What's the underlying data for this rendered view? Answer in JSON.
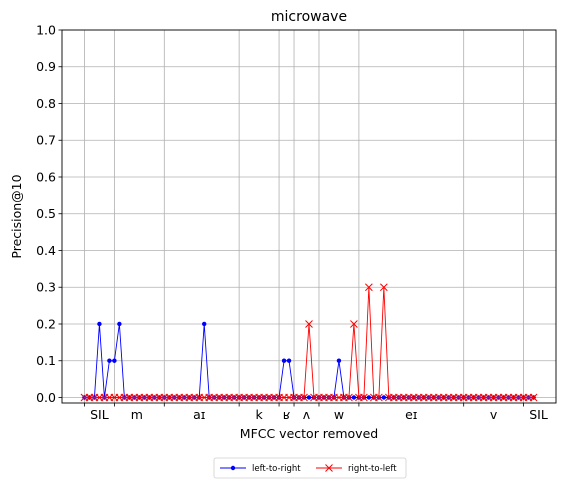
{
  "chart_data": {
    "type": "line",
    "title": "microwave",
    "xlabel": "MFCC vector removed",
    "ylabel": "Precision@10",
    "ylim": [
      -0.015,
      1.0
    ],
    "yticks": [
      "0.0",
      "0.1",
      "0.2",
      "0.3",
      "0.4",
      "0.5",
      "0.6",
      "0.7",
      "0.8",
      "0.9",
      "1.0"
    ],
    "xlim": [
      -4.5,
      94.5
    ],
    "grid": true,
    "x": [
      0,
      1,
      2,
      3,
      4,
      5,
      6,
      7,
      8,
      9,
      10,
      11,
      12,
      13,
      14,
      15,
      16,
      17,
      18,
      19,
      20,
      21,
      22,
      23,
      24,
      25,
      26,
      27,
      28,
      29,
      30,
      31,
      32,
      33,
      34,
      35,
      36,
      37,
      38,
      39,
      40,
      41,
      42,
      43,
      44,
      45,
      46,
      47,
      48,
      49,
      50,
      51,
      52,
      53,
      54,
      55,
      56,
      57,
      58,
      59,
      60,
      61,
      62,
      63,
      64,
      65,
      66,
      67,
      68,
      69,
      70,
      71,
      72,
      73,
      74,
      75,
      76,
      77,
      78,
      79,
      80,
      81,
      82,
      83,
      84,
      85,
      86,
      87,
      88,
      89,
      90
    ],
    "phone_boundaries": [
      0,
      6,
      16,
      31,
      39,
      42,
      47,
      55,
      76,
      88
    ],
    "phone_labels": [
      {
        "label": "SIL",
        "x": 3
      },
      {
        "label": "m",
        "x": 10.5
      },
      {
        "label": "aɪ",
        "x": 23
      },
      {
        "label": "k",
        "x": 35
      },
      {
        "label": "ʁ",
        "x": 40.5
      },
      {
        "label": "ʌ",
        "x": 44.5
      },
      {
        "label": "w",
        "x": 51
      },
      {
        "label": "eɪ",
        "x": 65.5
      },
      {
        "label": "v",
        "x": 82
      },
      {
        "label": "SIL",
        "x": 91
      }
    ],
    "series": [
      {
        "name": "left-to-right",
        "color": "#0000ff",
        "marker": "dot",
        "values": [
          0,
          0,
          0,
          0.2,
          0,
          0.1,
          0.1,
          0.2,
          0,
          0,
          0,
          0,
          0,
          0,
          0,
          0,
          0,
          0,
          0,
          0,
          0,
          0,
          0,
          0,
          0.2,
          0,
          0,
          0,
          0,
          0,
          0,
          0,
          0,
          0,
          0,
          0,
          0,
          0,
          0,
          0,
          0.1,
          0.1,
          0,
          0,
          0,
          0,
          0,
          0,
          0,
          0,
          0,
          0.1,
          0,
          0,
          0,
          0,
          0,
          0,
          0,
          0,
          0,
          0,
          0,
          0,
          0,
          0,
          0,
          0,
          0,
          0,
          0,
          0,
          0,
          0,
          0,
          0,
          0,
          0,
          0,
          0,
          0,
          0,
          0,
          0,
          0,
          0,
          0,
          0,
          0,
          0,
          0
        ]
      },
      {
        "name": "right-to-left",
        "color": "#ff0000",
        "marker": "x",
        "values": [
          0,
          0,
          0,
          0,
          0,
          0,
          0,
          0,
          0,
          0,
          0,
          0,
          0,
          0,
          0,
          0,
          0,
          0,
          0,
          0,
          0,
          0,
          0,
          0,
          0,
          0,
          0,
          0,
          0,
          0,
          0,
          0,
          0,
          0,
          0,
          0,
          0,
          0,
          0,
          0,
          0,
          0,
          0,
          0,
          0,
          0.2,
          0,
          0,
          0,
          0,
          0,
          0,
          0,
          0,
          0.2,
          0,
          0,
          0.3,
          0,
          0,
          0.3,
          0,
          0,
          0,
          0,
          0,
          0,
          0,
          0,
          0,
          0,
          0,
          0,
          0,
          0,
          0,
          0,
          0,
          0,
          0,
          0,
          0,
          0,
          0,
          0,
          0,
          0,
          0,
          0,
          0,
          0
        ]
      }
    ],
    "legend": {
      "placement": "bottom-center",
      "entries": [
        "left-to-right",
        "right-to-left"
      ]
    }
  }
}
